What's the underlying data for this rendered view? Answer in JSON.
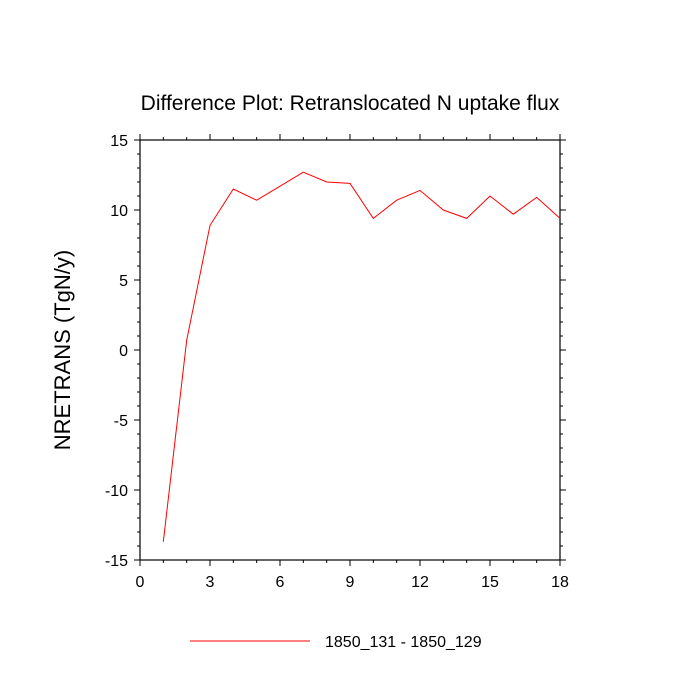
{
  "chart_data": {
    "type": "line",
    "title": "Difference Plot: Retranslocated N uptake flux",
    "xlabel": "",
    "ylabel": "NRETRANS  (TgN/y)",
    "xlim": [
      0,
      18
    ],
    "ylim": [
      -15,
      15
    ],
    "xticks": [
      0,
      3,
      6,
      9,
      12,
      15,
      18
    ],
    "yticks": [
      -15,
      -10,
      -5,
      0,
      5,
      10,
      15
    ],
    "grid": false,
    "legend_position": "bottom-center",
    "series": [
      {
        "name": "1850_131 - 1850_129",
        "color": "#ff0000",
        "x": [
          1,
          2,
          3,
          4,
          5,
          6,
          7,
          8,
          9,
          10,
          11,
          12,
          13,
          14,
          15,
          16,
          17,
          18
        ],
        "y": [
          -13.7,
          0.7,
          8.9,
          11.5,
          10.7,
          11.7,
          12.7,
          12.0,
          11.9,
          9.4,
          10.7,
          11.4,
          10.0,
          9.4,
          11.0,
          9.7,
          10.9,
          9.4
        ]
      }
    ]
  }
}
